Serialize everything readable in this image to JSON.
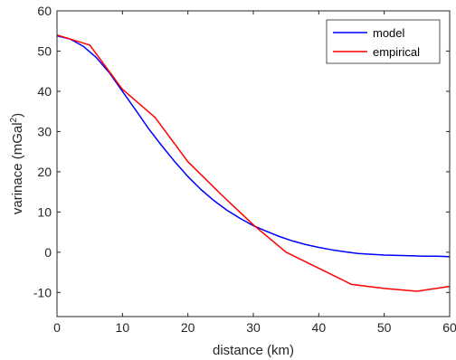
{
  "chart_data": {
    "type": "line",
    "xlabel": "distance (km)",
    "ylabel_main": "varinace (mGal",
    "ylabel_sup": "2",
    "ylabel_end": ")",
    "xlim": [
      0,
      60
    ],
    "ylim": [
      -16,
      60
    ],
    "xticks": [
      0,
      10,
      20,
      30,
      40,
      50,
      60
    ],
    "yticks": [
      -10,
      0,
      10,
      20,
      30,
      40,
      50,
      60
    ],
    "grid": false,
    "legend_position": "top-right",
    "series": [
      {
        "name": "model",
        "color": "#0000ff",
        "x": [
          0,
          2,
          4,
          6,
          8,
          10,
          12,
          14,
          16,
          18,
          20,
          22,
          24,
          26,
          28,
          30,
          32,
          34,
          36,
          38,
          40,
          42,
          44,
          46,
          48,
          50,
          52,
          54,
          56,
          58,
          60
        ],
        "y": [
          53.8,
          53.0,
          51.2,
          48.4,
          44.6,
          40.0,
          35.4,
          30.7,
          26.5,
          22.5,
          18.8,
          15.6,
          12.8,
          10.4,
          8.4,
          6.6,
          5.2,
          3.9,
          2.8,
          1.9,
          1.2,
          0.6,
          0.1,
          -0.3,
          -0.5,
          -0.7,
          -0.8,
          -0.9,
          -1.0,
          -1.0,
          -1.1
        ]
      },
      {
        "name": "empirical",
        "color": "#ff0000",
        "x": [
          0,
          5,
          10,
          15,
          20,
          25,
          30,
          35,
          40,
          45,
          50,
          55,
          60
        ],
        "y": [
          54.0,
          51.5,
          40.5,
          33.5,
          22.5,
          14.5,
          6.8,
          0.0,
          -4.0,
          -8.0,
          -9.0,
          -9.7,
          -8.5
        ]
      }
    ]
  }
}
